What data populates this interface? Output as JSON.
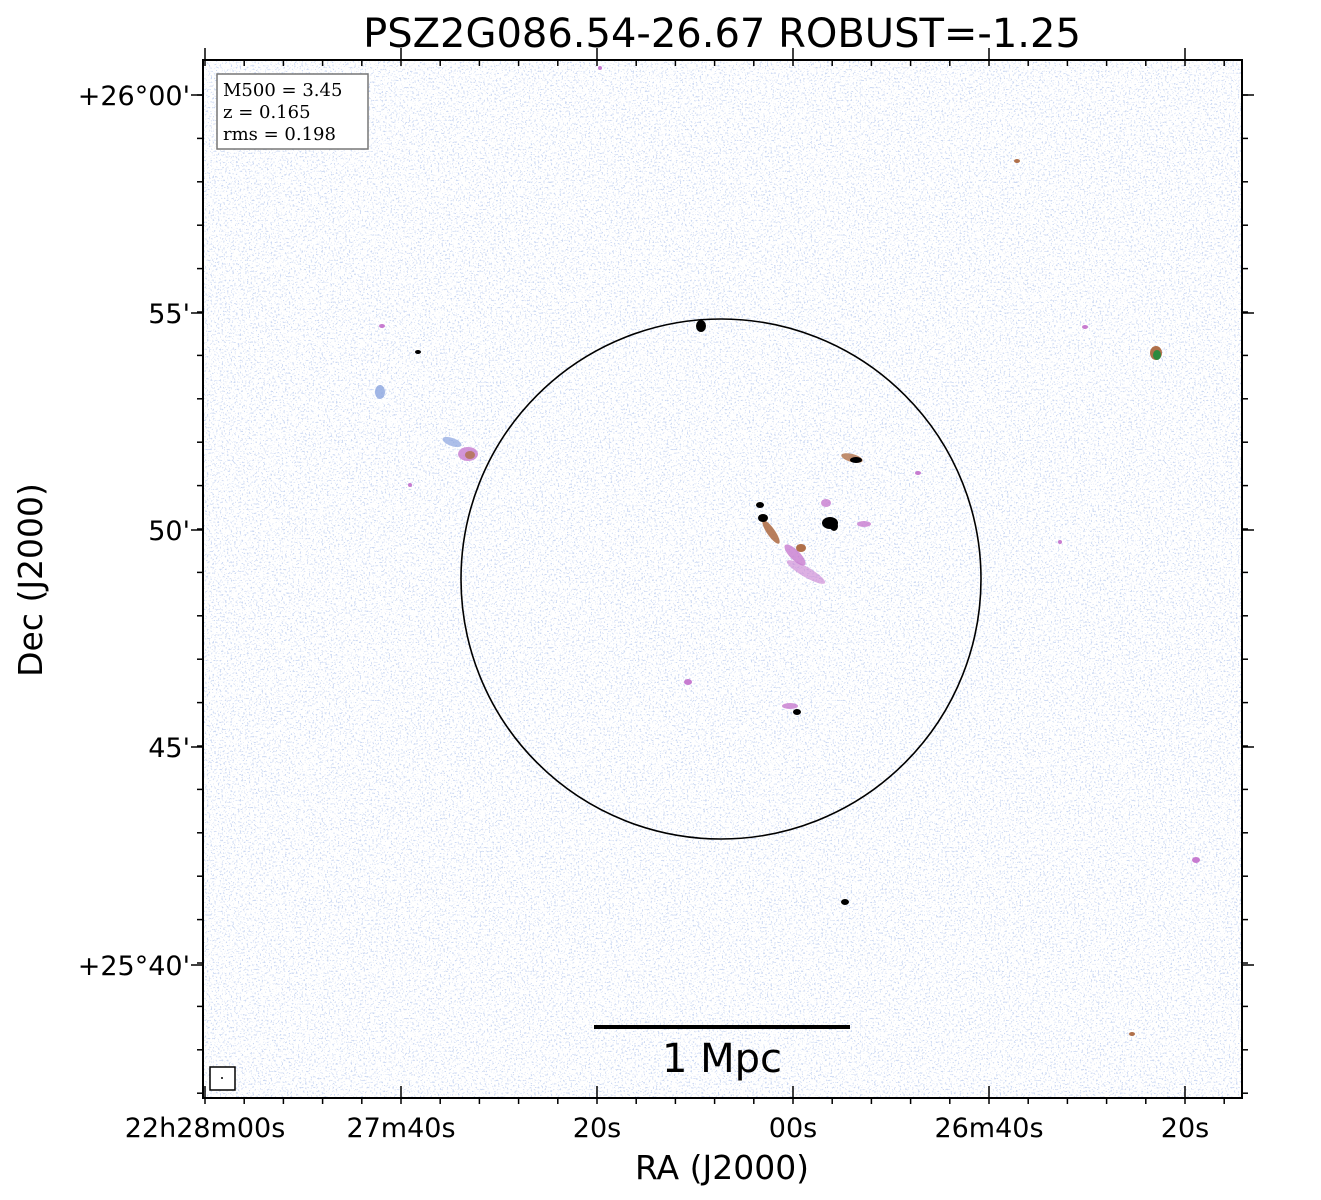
{
  "chart_data": {
    "type": "heatmap",
    "title": "PSZ2G086.54-26.67 ROBUST=-1.25",
    "xlabel": "RA (J2000)",
    "ylabel": "Dec (J2000)",
    "x_ticks": [
      "22h28m00s",
      "27m40s",
      "20s",
      "00s",
      "26m40s",
      "20s"
    ],
    "y_ticks": [
      "+26°00'",
      "55'",
      "50'",
      "45'",
      "+25°40'"
    ],
    "info_box": {
      "m500": "M500 = 3.45",
      "z": "z = 0.165",
      "rms": "rms = 0.198"
    },
    "scale_bar_label": "1 Mpc",
    "grid": false,
    "colors": {
      "noise": "#8aa4df",
      "diffuse": "#c77bd0",
      "mid": "#b0704a",
      "bright": "#000000",
      "green": "#2d8a3e",
      "circle": "#000000"
    }
  }
}
